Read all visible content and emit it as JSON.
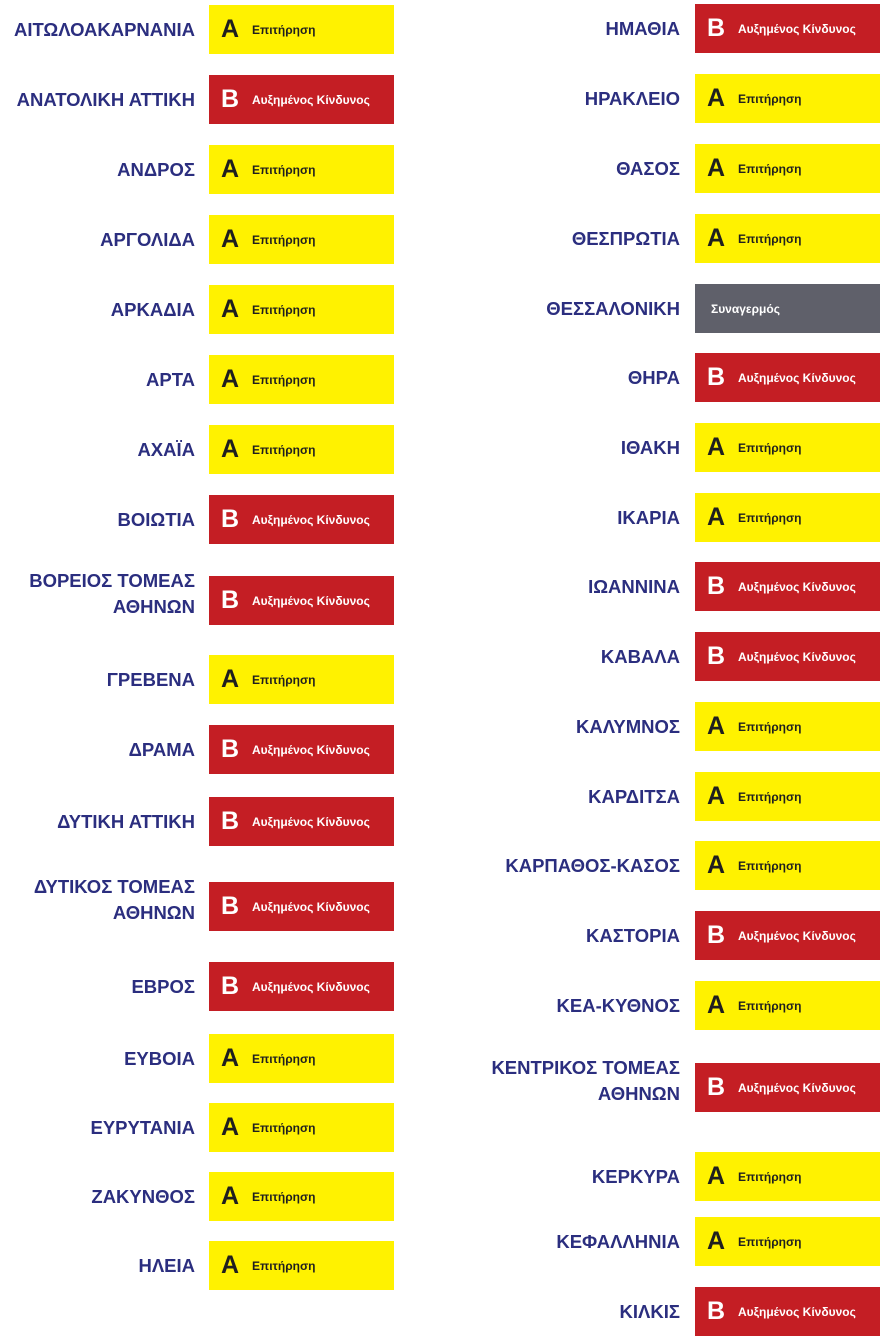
{
  "colors": {
    "region_text": "#2b2e7f",
    "level_A_background": "#fff200",
    "level_B_background": "#c41e24",
    "alarm_background": "#5f606a"
  },
  "levels": {
    "A": {
      "letter": "Α",
      "label": "Επιτήρηση"
    },
    "B": {
      "letter": "Β",
      "label": "Αυξημένος Κίνδυνος"
    },
    "alarm": {
      "letter": "",
      "label": "Συναγερμός"
    }
  },
  "left_column": [
    {
      "region": "ΑΙΤΩΛΟΑΚΑΡΝΑΝΙΑ",
      "level": "A",
      "letter": "Α",
      "label": "Επιτήρηση"
    },
    {
      "region": "ΑΝΑΤΟΛΙΚΗ ΑΤΤΙΚΗ",
      "level": "B",
      "letter": "Β",
      "label": "Αυξημένος Κίνδυνος"
    },
    {
      "region": "ΑΝΔΡΟΣ",
      "level": "A",
      "letter": "Α",
      "label": "Επιτήρηση"
    },
    {
      "region": "ΑΡΓΟΛΙΔΑ",
      "level": "A",
      "letter": "Α",
      "label": "Επιτήρηση"
    },
    {
      "region": "ΑΡΚΑΔΙΑ",
      "level": "A",
      "letter": "Α",
      "label": "Επιτήρηση"
    },
    {
      "region": "ΑΡΤΑ",
      "level": "A",
      "letter": "Α",
      "label": "Επιτήρηση"
    },
    {
      "region": "ΑΧΑΪΑ",
      "level": "A",
      "letter": "Α",
      "label": "Επιτήρηση"
    },
    {
      "region": "ΒΟΙΩΤΙΑ",
      "level": "B",
      "letter": "Β",
      "label": "Αυξημένος Κίνδυνος"
    },
    {
      "region": "ΒΟΡΕΙΟΣ ΤΟΜΕΑΣ\nΑΘΗΝΩΝ",
      "level": "B",
      "letter": "Β",
      "label": "Αυξημένος Κίνδυνος"
    },
    {
      "region": "ΓΡΕΒΕΝΑ",
      "level": "A",
      "letter": "Α",
      "label": "Επιτήρηση"
    },
    {
      "region": "ΔΡΑΜΑ",
      "level": "B",
      "letter": "Β",
      "label": "Αυξημένος Κίνδυνος"
    },
    {
      "region": "ΔΥΤΙΚΗ ΑΤΤΙΚΗ",
      "level": "B",
      "letter": "Β",
      "label": "Αυξημένος Κίνδυνος"
    },
    {
      "region": "ΔΥΤΙΚΟΣ ΤΟΜΕΑΣ\nΑΘΗΝΩΝ",
      "level": "B",
      "letter": "Β",
      "label": "Αυξημένος Κίνδυνος"
    },
    {
      "region": "ΕΒΡΟΣ",
      "level": "B",
      "letter": "Β",
      "label": "Αυξημένος Κίνδυνος"
    },
    {
      "region": "ΕΥΒΟΙΑ",
      "level": "A",
      "letter": "Α",
      "label": "Επιτήρηση"
    },
    {
      "region": "ΕΥΡΥΤΑΝΙΑ",
      "level": "A",
      "letter": "Α",
      "label": "Επιτήρηση"
    },
    {
      "region": "ΖΑΚΥΝΘΟΣ",
      "level": "A",
      "letter": "Α",
      "label": "Επιτήρηση"
    },
    {
      "region": "ΗΛΕΙΑ",
      "level": "A",
      "letter": "Α",
      "label": "Επιτήρηση"
    }
  ],
  "right_column": [
    {
      "region": "ΗΜΑΘΙΑ",
      "level": "B",
      "letter": "Β",
      "label": "Αυξημένος Κίνδυνος"
    },
    {
      "region": "ΗΡΑΚΛΕΙΟ",
      "level": "A",
      "letter": "Α",
      "label": "Επιτήρηση"
    },
    {
      "region": "ΘΑΣΟΣ",
      "level": "A",
      "letter": "Α",
      "label": "Επιτήρηση"
    },
    {
      "region": "ΘΕΣΠΡΩΤΙΑ",
      "level": "A",
      "letter": "Α",
      "label": "Επιτήρηση"
    },
    {
      "region": "ΘΕΣΣΑΛΟΝΙΚΗ",
      "level": "alarm",
      "letter": "",
      "label": "Συναγερμός"
    },
    {
      "region": "ΘΗΡΑ",
      "level": "B",
      "letter": "Β",
      "label": "Αυξημένος Κίνδυνος"
    },
    {
      "region": "ΙΘΑΚΗ",
      "level": "A",
      "letter": "Α",
      "label": "Επιτήρηση"
    },
    {
      "region": "ΙΚΑΡΙΑ",
      "level": "A",
      "letter": "Α",
      "label": "Επιτήρηση"
    },
    {
      "region": "ΙΩΑΝΝΙΝΑ",
      "level": "B",
      "letter": "Β",
      "label": "Αυξημένος Κίνδυνος"
    },
    {
      "region": "ΚΑΒΑΛΑ",
      "level": "B",
      "letter": "Β",
      "label": "Αυξημένος Κίνδυνος"
    },
    {
      "region": "ΚΑΛΥΜΝΟΣ",
      "level": "A",
      "letter": "Α",
      "label": "Επιτήρηση"
    },
    {
      "region": "ΚΑΡΔΙΤΣΑ",
      "level": "A",
      "letter": "Α",
      "label": "Επιτήρηση"
    },
    {
      "region": "ΚΑΡΠΑΘΟΣ-ΚΑΣΟΣ",
      "level": "A",
      "letter": "Α",
      "label": "Επιτήρηση"
    },
    {
      "region": "ΚΑΣΤΟΡΙΑ",
      "level": "B",
      "letter": "Β",
      "label": "Αυξημένος Κίνδυνος"
    },
    {
      "region": "ΚΕΑ-ΚΥΘΝΟΣ",
      "level": "A",
      "letter": "Α",
      "label": "Επιτήρηση"
    },
    {
      "region": "ΚΕΝΤΡΙΚΟΣ ΤΟΜΕΑΣ\nΑΘΗΝΩΝ",
      "level": "B",
      "letter": "Β",
      "label": "Αυξημένος Κίνδυνος"
    },
    {
      "region": "ΚΕΡΚΥΡΑ",
      "level": "A",
      "letter": "Α",
      "label": "Επιτήρηση"
    },
    {
      "region": "ΚΕΦΑΛΛΗΝΙΑ",
      "level": "A",
      "letter": "Α",
      "label": "Επιτήρηση"
    },
    {
      "region": "ΚΙΛΚΙΣ",
      "level": "B",
      "letter": "Β",
      "label": "Αυξημένος Κίνδυνος"
    }
  ]
}
